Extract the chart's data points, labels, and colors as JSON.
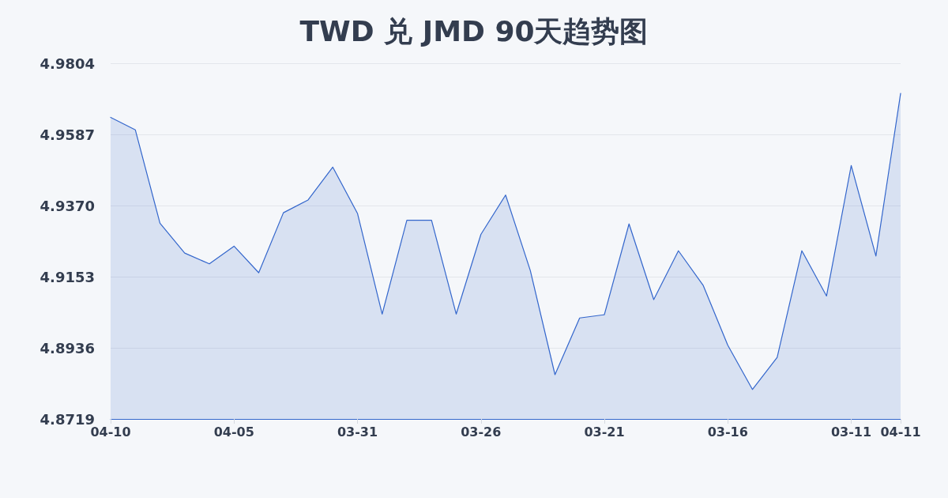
{
  "chart_data": {
    "type": "area",
    "title": "TWD 兑 JMD 90天趋势图",
    "categories": [
      "04-10",
      null,
      null,
      null,
      null,
      "04-05",
      null,
      null,
      null,
      null,
      "03-31",
      null,
      null,
      null,
      null,
      "03-26",
      null,
      null,
      null,
      null,
      "03-21",
      null,
      null,
      null,
      null,
      "03-16",
      null,
      null,
      null,
      null,
      "03-11",
      null,
      "04-11"
    ],
    "values": [
      4.9639,
      4.9601,
      4.9316,
      4.9225,
      4.9192,
      4.9246,
      4.9165,
      4.9348,
      4.9387,
      4.9487,
      4.9346,
      4.9039,
      4.9325,
      4.9325,
      4.9039,
      4.9282,
      4.9402,
      4.9172,
      4.8854,
      4.9027,
      4.9037,
      4.9314,
      4.9083,
      4.9232,
      4.9127,
      4.8944,
      4.8809,
      4.8907,
      4.9232,
      4.9094,
      4.9492,
      4.9216,
      4.9712
    ],
    "color": "#3366cc",
    "ylim": [
      4.8719,
      4.9804
    ],
    "yticks": [
      4.8719,
      4.8936,
      4.9153,
      {
        "value": 4.937,
        "label": "4.9370"
      },
      4.9587,
      4.9804
    ],
    "grid": "y",
    "marker": "none"
  }
}
